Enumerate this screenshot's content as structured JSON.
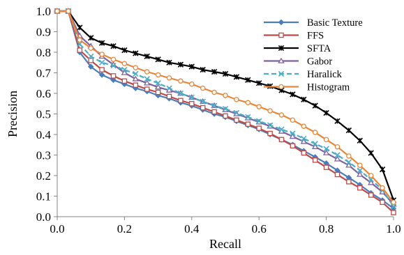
{
  "chart_data": {
    "type": "line",
    "title": "",
    "xlabel": "Recall",
    "ylabel": "Precision",
    "xlim": [
      0,
      1
    ],
    "ylim": [
      0,
      1
    ],
    "x_ticks": [
      "0.0",
      "0.2",
      "0.4",
      "0.6",
      "0.8",
      "1.0"
    ],
    "y_ticks": [
      "0.0",
      "0.1",
      "0.2",
      "0.3",
      "0.4",
      "0.5",
      "0.6",
      "0.7",
      "0.8",
      "0.9",
      "1.0"
    ],
    "grid": false,
    "legend_position": "top-right",
    "x": [
      0,
      0.033,
      0.067,
      0.1,
      0.133,
      0.167,
      0.2,
      0.233,
      0.267,
      0.3,
      0.333,
      0.367,
      0.4,
      0.433,
      0.467,
      0.5,
      0.533,
      0.567,
      0.6,
      0.633,
      0.667,
      0.7,
      0.733,
      0.767,
      0.8,
      0.833,
      0.867,
      0.9,
      0.933,
      0.967,
      1.0
    ],
    "series": [
      {
        "name": "Basic Texture",
        "color": "#4A7EBB",
        "marker": "diamond",
        "dashed": false,
        "values": [
          1.0,
          1.0,
          0.8,
          0.73,
          0.69,
          0.665,
          0.645,
          0.625,
          0.61,
          0.59,
          0.575,
          0.555,
          0.54,
          0.52,
          0.5,
          0.485,
          0.465,
          0.445,
          0.425,
          0.4,
          0.375,
          0.35,
          0.32,
          0.29,
          0.26,
          0.225,
          0.19,
          0.155,
          0.115,
          0.08,
          0.04
        ]
      },
      {
        "name": "FFS",
        "color": "#BE4B48",
        "marker": "square",
        "dashed": false,
        "values": [
          1.0,
          1.0,
          0.81,
          0.76,
          0.715,
          0.685,
          0.66,
          0.64,
          0.62,
          0.605,
          0.585,
          0.565,
          0.55,
          0.53,
          0.51,
          0.49,
          0.47,
          0.45,
          0.43,
          0.405,
          0.375,
          0.345,
          0.31,
          0.275,
          0.24,
          0.205,
          0.17,
          0.14,
          0.105,
          0.07,
          0.02
        ]
      },
      {
        "name": "SFTA",
        "color": "#000000",
        "marker": "star",
        "dashed": false,
        "values": [
          1.0,
          1.0,
          0.92,
          0.87,
          0.845,
          0.83,
          0.81,
          0.795,
          0.78,
          0.765,
          0.75,
          0.74,
          0.73,
          0.715,
          0.705,
          0.695,
          0.68,
          0.665,
          0.65,
          0.635,
          0.615,
          0.595,
          0.57,
          0.54,
          0.505,
          0.465,
          0.42,
          0.37,
          0.31,
          0.23,
          0.08
        ]
      },
      {
        "name": "Gabor",
        "color": "#7D60A0",
        "marker": "triangle",
        "dashed": false,
        "values": [
          1.0,
          1.0,
          0.88,
          0.83,
          0.78,
          0.74,
          0.7,
          0.67,
          0.65,
          0.63,
          0.615,
          0.6,
          0.58,
          0.56,
          0.54,
          0.52,
          0.5,
          0.48,
          0.46,
          0.44,
          0.415,
          0.39,
          0.365,
          0.34,
          0.31,
          0.28,
          0.25,
          0.205,
          0.165,
          0.12,
          0.06
        ]
      },
      {
        "name": "Haralick",
        "color": "#4BACC6",
        "marker": "x",
        "dashed": true,
        "values": [
          1.0,
          1.0,
          0.84,
          0.78,
          0.75,
          0.735,
          0.715,
          0.695,
          0.67,
          0.65,
          0.625,
          0.6,
          0.58,
          0.56,
          0.54,
          0.525,
          0.505,
          0.485,
          0.465,
          0.445,
          0.425,
          0.405,
          0.38,
          0.355,
          0.33,
          0.3,
          0.265,
          0.225,
          0.18,
          0.13,
          0.05
        ]
      },
      {
        "name": "Histogram",
        "color": "#E8873A",
        "marker": "circle",
        "dashed": false,
        "values": [
          1.0,
          1.0,
          0.86,
          0.82,
          0.79,
          0.765,
          0.745,
          0.725,
          0.705,
          0.69,
          0.675,
          0.66,
          0.645,
          0.625,
          0.605,
          0.59,
          0.57,
          0.555,
          0.535,
          0.515,
          0.495,
          0.47,
          0.44,
          0.41,
          0.375,
          0.34,
          0.295,
          0.25,
          0.2,
          0.14,
          0.07
        ]
      }
    ]
  }
}
